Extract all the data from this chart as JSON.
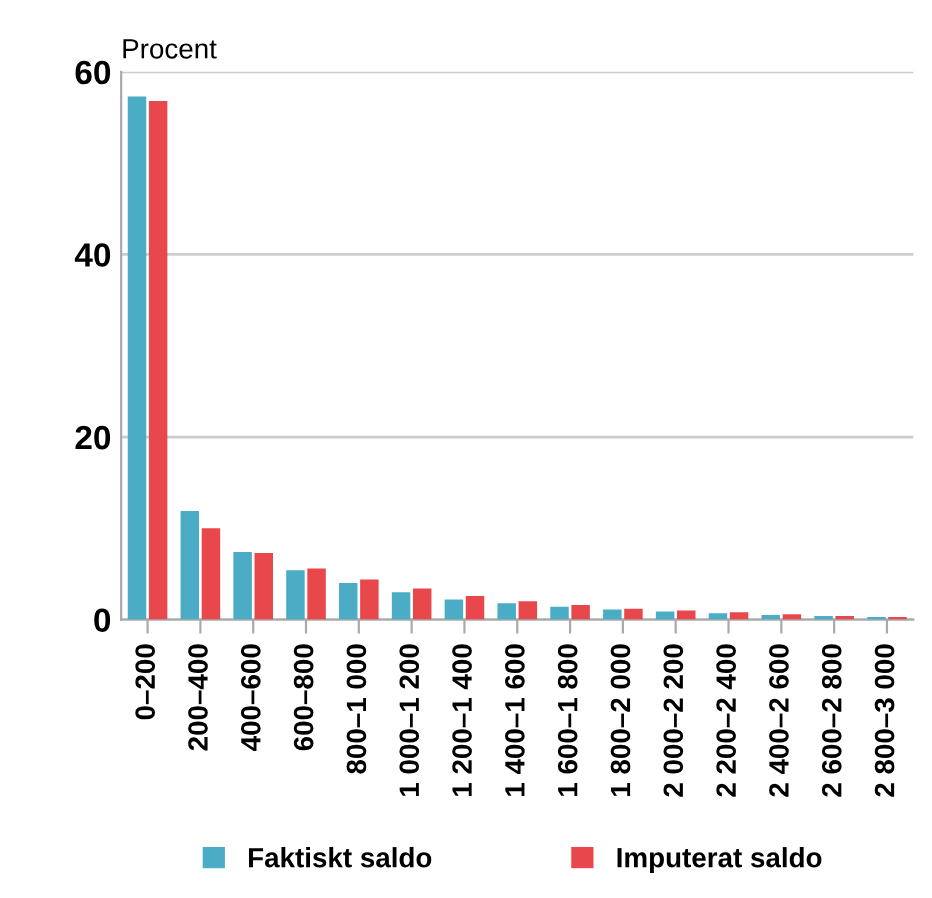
{
  "chart_data": {
    "type": "bar",
    "ylabel": "Procent",
    "categories": [
      "0–200",
      "200–400",
      "400–600",
      "600–800",
      "800–1 000",
      "1 000–1 200",
      "1 200–1 400",
      "1 400–1 600",
      "1 600–1 800",
      "1 800–2 000",
      "2 000–2 200",
      "2 200–2 400",
      "2 400–2 600",
      "2 600–2 800",
      "2 800–3 000"
    ],
    "series": [
      {
        "name": "Faktiskt saldo",
        "color": "#4bacc6",
        "values": [
          57.3,
          11.9,
          7.4,
          5.4,
          4.0,
          3.0,
          2.2,
          1.8,
          1.4,
          1.1,
          0.9,
          0.7,
          0.5,
          0.4,
          0.3
        ]
      },
      {
        "name": "Imputerat saldo",
        "color": "#e8474c",
        "values": [
          56.8,
          10.0,
          7.3,
          5.6,
          4.4,
          3.4,
          2.6,
          2.0,
          1.6,
          1.2,
          1.0,
          0.8,
          0.6,
          0.4,
          0.3
        ]
      }
    ],
    "ylim": [
      0,
      60
    ],
    "yticks": [
      0,
      20,
      40,
      60
    ],
    "grid": "y",
    "legend": "bottom"
  }
}
